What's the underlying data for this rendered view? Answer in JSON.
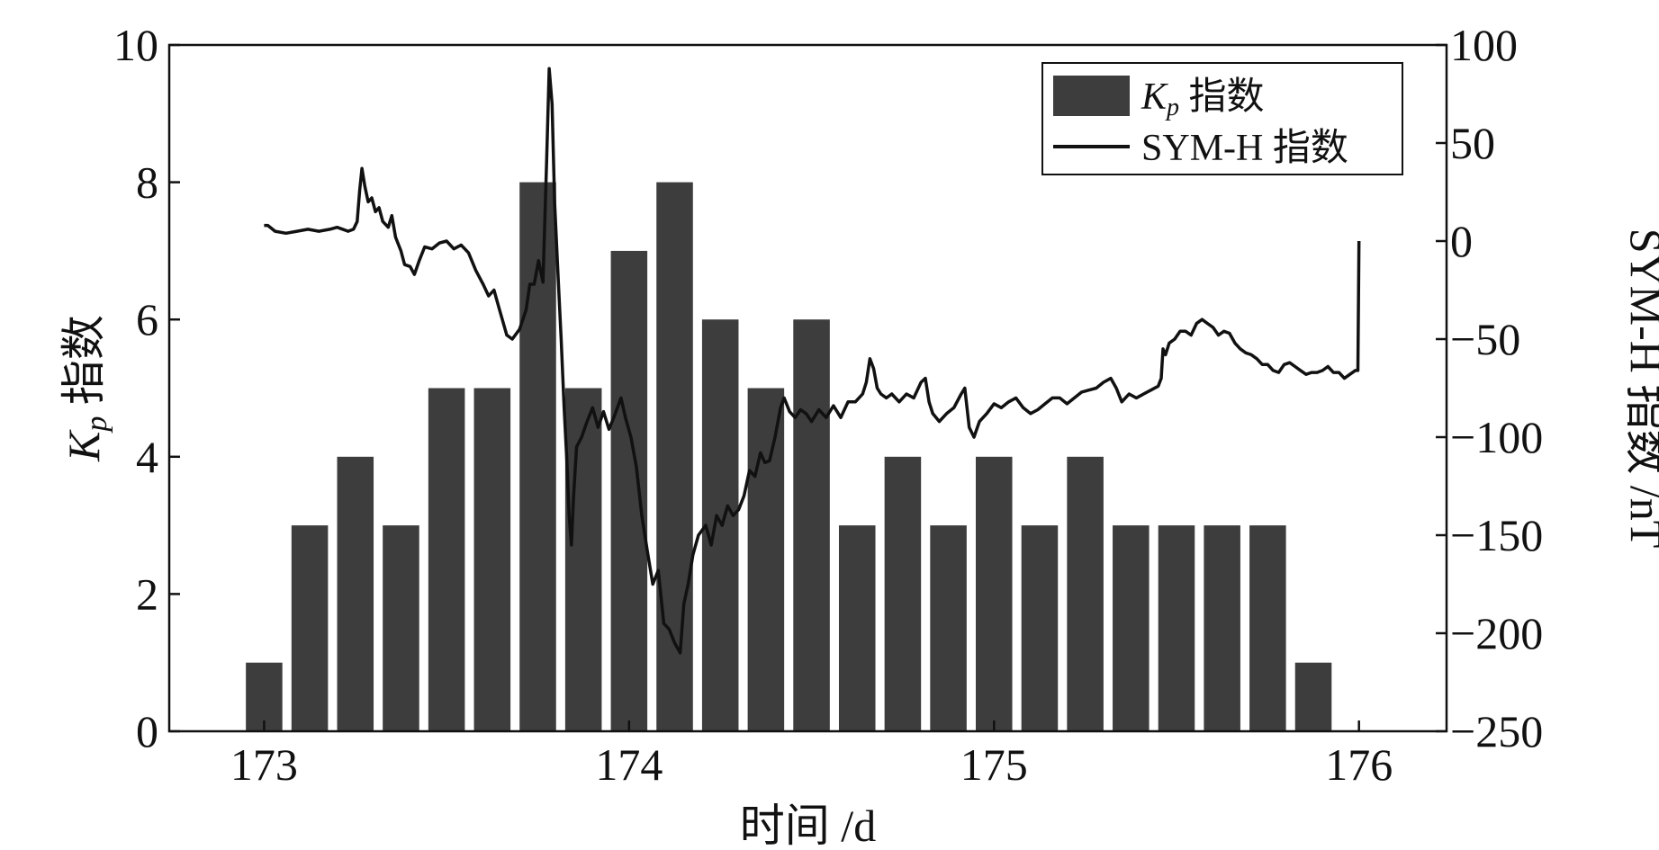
{
  "chart_data": {
    "type": "bar+line",
    "xlabel": "时间 /d",
    "ylabel_left_var": "K",
    "ylabel_left_sub": "p",
    "ylabel_left_suffix": " 指数",
    "ylabel_right": "SYM-H 指数 /nT",
    "xlim": [
      172.74,
      176.24
    ],
    "ylim_left": [
      0,
      10
    ],
    "ylim_right": [
      -250,
      100
    ],
    "xticks": [
      173,
      174,
      175,
      176
    ],
    "yticks_left": [
      0,
      2,
      4,
      6,
      8,
      10
    ],
    "yticks_right": [
      -250,
      -200,
      -150,
      -100,
      -50,
      0,
      50,
      100
    ],
    "legend": {
      "position": "top-right",
      "entries": [
        {
          "var": "K",
          "sub": "p",
          "suffix": " 指数",
          "kind": "bar"
        },
        {
          "label": "SYM-H 指数",
          "kind": "line"
        }
      ]
    },
    "colors": {
      "bar": "#3d3d3d",
      "line": "#111111"
    },
    "series": [
      {
        "name": "Kp 指数",
        "kind": "bar",
        "axis": "left",
        "x": [
          173.0,
          173.125,
          173.25,
          173.375,
          173.5,
          173.625,
          173.75,
          173.875,
          174.0,
          174.125,
          174.25,
          174.375,
          174.5,
          174.625,
          174.75,
          174.875,
          175.0,
          175.125,
          175.25,
          175.375,
          175.5,
          175.625,
          175.75,
          175.875
        ],
        "values": [
          1,
          3,
          4,
          3,
          5,
          5,
          8,
          5,
          7,
          8,
          6,
          5,
          6,
          3,
          4,
          3,
          4,
          3,
          4,
          3,
          3,
          3,
          3,
          1
        ]
      },
      {
        "name": "SYM-H 指数",
        "kind": "line",
        "axis": "right",
        "points": [
          [
            173.0,
            8
          ],
          [
            173.01,
            8
          ],
          [
            173.03,
            5
          ],
          [
            173.06,
            4
          ],
          [
            173.09,
            5
          ],
          [
            173.12,
            6
          ],
          [
            173.15,
            5
          ],
          [
            173.18,
            6
          ],
          [
            173.2,
            7
          ],
          [
            173.23,
            5
          ],
          [
            173.245,
            6
          ],
          [
            173.255,
            10
          ],
          [
            173.262,
            26
          ],
          [
            173.268,
            37
          ],
          [
            173.276,
            28
          ],
          [
            173.285,
            20
          ],
          [
            173.295,
            22
          ],
          [
            173.305,
            15
          ],
          [
            173.315,
            17
          ],
          [
            173.325,
            10
          ],
          [
            173.34,
            7
          ],
          [
            173.35,
            13
          ],
          [
            173.36,
            2
          ],
          [
            173.375,
            -5
          ],
          [
            173.385,
            -12
          ],
          [
            173.4,
            -13
          ],
          [
            173.412,
            -17
          ],
          [
            173.425,
            -10
          ],
          [
            173.44,
            -3
          ],
          [
            173.46,
            -4
          ],
          [
            173.48,
            -1
          ],
          [
            173.5,
            0
          ],
          [
            173.52,
            -4
          ],
          [
            173.54,
            -2
          ],
          [
            173.56,
            -6
          ],
          [
            173.58,
            -15
          ],
          [
            173.6,
            -22
          ],
          [
            173.615,
            -28
          ],
          [
            173.63,
            -25
          ],
          [
            173.645,
            -35
          ],
          [
            173.665,
            -48
          ],
          [
            173.68,
            -50
          ],
          [
            173.7,
            -45
          ],
          [
            173.718,
            -35
          ],
          [
            173.728,
            -22
          ],
          [
            173.74,
            -22
          ],
          [
            173.752,
            -10
          ],
          [
            173.764,
            -21
          ],
          [
            173.774,
            40
          ],
          [
            173.781,
            88
          ],
          [
            173.789,
            70
          ],
          [
            173.796,
            20
          ],
          [
            173.806,
            -20
          ],
          [
            173.814,
            -50
          ],
          [
            173.822,
            -85
          ],
          [
            173.829,
            -110
          ],
          [
            173.836,
            -140
          ],
          [
            173.842,
            -155
          ],
          [
            173.848,
            -130
          ],
          [
            173.856,
            -105
          ],
          [
            173.87,
            -100
          ],
          [
            173.885,
            -92
          ],
          [
            173.9,
            -85
          ],
          [
            173.915,
            -95
          ],
          [
            173.93,
            -87
          ],
          [
            173.945,
            -96
          ],
          [
            173.958,
            -90
          ],
          [
            173.968,
            -85
          ],
          [
            173.978,
            -80
          ],
          [
            173.99,
            -90
          ],
          [
            174.005,
            -100
          ],
          [
            174.02,
            -115
          ],
          [
            174.035,
            -140
          ],
          [
            174.05,
            -158
          ],
          [
            174.065,
            -175
          ],
          [
            174.08,
            -168
          ],
          [
            174.095,
            -195
          ],
          [
            174.11,
            -198
          ],
          [
            174.125,
            -205
          ],
          [
            174.14,
            -210
          ],
          [
            174.15,
            -185
          ],
          [
            174.162,
            -175
          ],
          [
            174.175,
            -160
          ],
          [
            174.19,
            -150
          ],
          [
            174.21,
            -145
          ],
          [
            174.225,
            -155
          ],
          [
            174.24,
            -140
          ],
          [
            174.255,
            -145
          ],
          [
            174.27,
            -135
          ],
          [
            174.285,
            -140
          ],
          [
            174.3,
            -137
          ],
          [
            174.315,
            -130
          ],
          [
            174.33,
            -117
          ],
          [
            174.345,
            -120
          ],
          [
            174.36,
            -108
          ],
          [
            174.372,
            -113
          ],
          [
            174.385,
            -112
          ],
          [
            174.4,
            -100
          ],
          [
            174.415,
            -85
          ],
          [
            174.425,
            -80
          ],
          [
            174.44,
            -87
          ],
          [
            174.455,
            -90
          ],
          [
            174.47,
            -86
          ],
          [
            174.485,
            -88
          ],
          [
            174.5,
            -92
          ],
          [
            174.52,
            -86
          ],
          [
            174.54,
            -90
          ],
          [
            174.56,
            -84
          ],
          [
            174.58,
            -90
          ],
          [
            174.6,
            -82
          ],
          [
            174.62,
            -82
          ],
          [
            174.64,
            -78
          ],
          [
            174.65,
            -72
          ],
          [
            174.66,
            -60
          ],
          [
            174.67,
            -65
          ],
          [
            174.68,
            -75
          ],
          [
            174.69,
            -78
          ],
          [
            174.705,
            -80
          ],
          [
            174.72,
            -78
          ],
          [
            174.74,
            -82
          ],
          [
            174.76,
            -78
          ],
          [
            174.78,
            -80
          ],
          [
            174.8,
            -72
          ],
          [
            174.812,
            -70
          ],
          [
            174.822,
            -82
          ],
          [
            174.832,
            -88
          ],
          [
            174.85,
            -92
          ],
          [
            174.87,
            -88
          ],
          [
            174.89,
            -85
          ],
          [
            174.91,
            -78
          ],
          [
            174.92,
            -75
          ],
          [
            174.932,
            -95
          ],
          [
            174.945,
            -100
          ],
          [
            174.96,
            -92
          ],
          [
            174.98,
            -88
          ],
          [
            175.0,
            -83
          ],
          [
            175.02,
            -85
          ],
          [
            175.04,
            -82
          ],
          [
            175.06,
            -80
          ],
          [
            175.08,
            -85
          ],
          [
            175.1,
            -88
          ],
          [
            175.12,
            -86
          ],
          [
            175.14,
            -83
          ],
          [
            175.16,
            -80
          ],
          [
            175.18,
            -80
          ],
          [
            175.2,
            -83
          ],
          [
            175.22,
            -80
          ],
          [
            175.24,
            -77
          ],
          [
            175.26,
            -76
          ],
          [
            175.28,
            -75
          ],
          [
            175.3,
            -72
          ],
          [
            175.32,
            -70
          ],
          [
            175.335,
            -75
          ],
          [
            175.35,
            -82
          ],
          [
            175.37,
            -78
          ],
          [
            175.39,
            -80
          ],
          [
            175.41,
            -78
          ],
          [
            175.43,
            -76
          ],
          [
            175.45,
            -74
          ],
          [
            175.458,
            -70
          ],
          [
            175.463,
            -55
          ],
          [
            175.47,
            -58
          ],
          [
            175.48,
            -52
          ],
          [
            175.495,
            -50
          ],
          [
            175.51,
            -46
          ],
          [
            175.525,
            -46
          ],
          [
            175.54,
            -48
          ],
          [
            175.555,
            -42
          ],
          [
            175.57,
            -40
          ],
          [
            175.585,
            -42
          ],
          [
            175.6,
            -44
          ],
          [
            175.615,
            -48
          ],
          [
            175.63,
            -46
          ],
          [
            175.645,
            -47
          ],
          [
            175.66,
            -52
          ],
          [
            175.675,
            -55
          ],
          [
            175.69,
            -57
          ],
          [
            175.705,
            -58
          ],
          [
            175.72,
            -60
          ],
          [
            175.735,
            -63
          ],
          [
            175.75,
            -63
          ],
          [
            175.765,
            -66
          ],
          [
            175.78,
            -67
          ],
          [
            175.795,
            -63
          ],
          [
            175.81,
            -62
          ],
          [
            175.825,
            -64
          ],
          [
            175.84,
            -66
          ],
          [
            175.855,
            -68
          ],
          [
            175.87,
            -67
          ],
          [
            175.885,
            -67
          ],
          [
            175.9,
            -66
          ],
          [
            175.915,
            -64
          ],
          [
            175.93,
            -67
          ],
          [
            175.945,
            -67
          ],
          [
            175.96,
            -70
          ],
          [
            175.975,
            -68
          ],
          [
            175.99,
            -66
          ],
          [
            175.997,
            -66
          ],
          [
            176.0,
            0
          ]
        ]
      }
    ]
  }
}
